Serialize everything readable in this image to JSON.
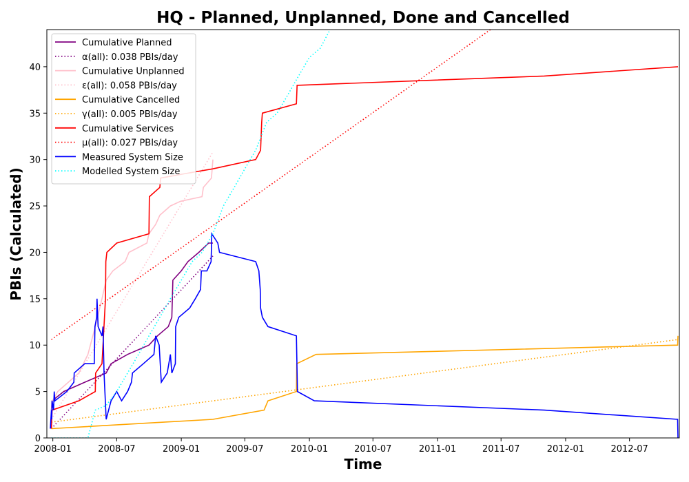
{
  "chart_data": {
    "type": "line",
    "title": "HQ - Planned, Unplanned, Done  and Cancelled",
    "xlabel": "Time",
    "ylabel": "PBIs (Calculated)",
    "xlim": [
      "2007-12-15",
      "2012-11-20"
    ],
    "ylim": [
      0,
      44
    ],
    "x_ticks": [
      "2008-01",
      "2008-07",
      "2009-01",
      "2009-07",
      "2010-01",
      "2010-07",
      "2011-01",
      "2011-07",
      "2012-01",
      "2012-07"
    ],
    "y_ticks": [
      0,
      5,
      10,
      15,
      20,
      25,
      30,
      35,
      40
    ],
    "grid": false,
    "legend": "upper-left",
    "series": [
      {
        "name": "Cumulative Planned",
        "color": "#800080",
        "style": "solid",
        "points": [
          [
            "2007-12-28",
            3
          ],
          [
            "2007-12-30",
            4
          ],
          [
            "2008-02-01",
            5
          ],
          [
            "2008-04-01",
            6
          ],
          [
            "2008-06-01",
            7
          ],
          [
            "2008-06-15",
            8
          ],
          [
            "2008-08-01",
            9
          ],
          [
            "2008-10-01",
            10
          ],
          [
            "2008-10-25",
            11
          ],
          [
            "2008-11-25",
            12
          ],
          [
            "2008-12-05",
            13
          ],
          [
            "2008-12-08",
            17
          ],
          [
            "2009-01-01",
            18
          ],
          [
            "2009-01-20",
            19
          ],
          [
            "2009-02-20",
            20
          ],
          [
            "2009-03-20",
            21
          ],
          [
            "2009-04-01",
            21
          ]
        ]
      },
      {
        "name": "α(all): 0.038 PBIs/day",
        "color": "#800080",
        "style": "dotted",
        "points": [
          [
            "2007-12-28",
            1.0
          ],
          [
            "2009-04-01",
            19.6
          ]
        ]
      },
      {
        "name": "Cumulative Unplanned",
        "color": "#ffc0cb",
        "style": "solid",
        "points": [
          [
            "2007-12-28",
            3
          ],
          [
            "2007-12-31",
            4
          ],
          [
            "2008-01-15",
            5
          ],
          [
            "2008-03-15",
            7
          ],
          [
            "2008-04-10",
            9
          ],
          [
            "2008-05-01",
            12
          ],
          [
            "2008-05-20",
            15
          ],
          [
            "2008-06-01",
            17
          ],
          [
            "2008-06-20",
            18
          ],
          [
            "2008-07-25",
            19
          ],
          [
            "2008-08-05",
            20
          ],
          [
            "2008-09-25",
            21
          ],
          [
            "2008-10-01",
            22
          ],
          [
            "2008-10-20",
            23
          ],
          [
            "2008-11-01",
            24
          ],
          [
            "2008-12-01",
            25
          ],
          [
            "2008-12-30",
            25.5
          ],
          [
            "2009-03-01",
            26
          ],
          [
            "2009-03-05",
            27
          ],
          [
            "2009-03-28",
            28
          ],
          [
            "2009-04-01",
            30
          ]
        ]
      },
      {
        "name": "ε(all): 0.058 PBIs/day",
        "color": "#ffc0cb",
        "style": "dotted",
        "points": [
          [
            "2007-12-28",
            2
          ],
          [
            "2009-04-01",
            30.8
          ]
        ]
      },
      {
        "name": "Cumulative Cancelled",
        "color": "#ffa500",
        "style": "solid",
        "points": [
          [
            "2007-12-28",
            1
          ],
          [
            "2009-04-01",
            2
          ],
          [
            "2009-08-25",
            3
          ],
          [
            "2009-09-05",
            4
          ],
          [
            "2009-11-25",
            5
          ],
          [
            "2009-11-26",
            8
          ],
          [
            "2010-01-20",
            9
          ],
          [
            "2012-11-15",
            10
          ],
          [
            "2012-11-16",
            11
          ]
        ]
      },
      {
        "name": "γ(all): 0.005 PBIs/day",
        "color": "#ffa500",
        "style": "dotted",
        "points": [
          [
            "2007-12-28",
            1.7
          ],
          [
            "2012-11-16",
            10.6
          ]
        ]
      },
      {
        "name": "Cumulative Services",
        "color": "#ff0000",
        "style": "solid",
        "points": [
          [
            "2007-12-28",
            1
          ],
          [
            "2007-12-30",
            3
          ],
          [
            "2008-03-15",
            4
          ],
          [
            "2008-05-01",
            5
          ],
          [
            "2008-05-02",
            7
          ],
          [
            "2008-05-20",
            8
          ],
          [
            "2008-05-30",
            15
          ],
          [
            "2008-05-31",
            19
          ],
          [
            "2008-06-03",
            20
          ],
          [
            "2008-07-01",
            21
          ],
          [
            "2008-10-01",
            22
          ],
          [
            "2008-10-02",
            26
          ],
          [
            "2008-11-01",
            27
          ],
          [
            "2008-11-03",
            28
          ],
          [
            "2009-01-15",
            28.5
          ],
          [
            "2009-04-01",
            29
          ],
          [
            "2009-08-01",
            30
          ],
          [
            "2009-08-15",
            31
          ],
          [
            "2009-08-18",
            34
          ],
          [
            "2009-08-20",
            35
          ],
          [
            "2009-11-25",
            36
          ],
          [
            "2009-11-27",
            38
          ],
          [
            "2011-11-01",
            39
          ],
          [
            "2012-11-16",
            40
          ]
        ]
      },
      {
        "name": "μ(all): 0.027 PBIs/day",
        "color": "#ff0000",
        "style": "dotted",
        "points": [
          [
            "2007-12-28",
            10.6
          ],
          [
            "2011-06-01",
            44
          ]
        ]
      },
      {
        "name": "Measured System Size",
        "color": "#0000ff",
        "style": "solid",
        "points": [
          [
            "2007-12-25",
            1
          ],
          [
            "2007-12-28",
            3
          ],
          [
            "2007-12-29",
            2
          ],
          [
            "2007-12-30",
            4
          ],
          [
            "2008-01-03",
            3
          ],
          [
            "2008-01-05",
            5
          ],
          [
            "2008-01-07",
            4
          ],
          [
            "2008-02-10",
            5
          ],
          [
            "2008-03-01",
            6
          ],
          [
            "2008-03-02",
            7
          ],
          [
            "2008-04-01",
            8
          ],
          [
            "2008-04-28",
            8
          ],
          [
            "2008-04-30",
            12
          ],
          [
            "2008-05-05",
            13
          ],
          [
            "2008-05-06",
            15
          ],
          [
            "2008-05-09",
            12
          ],
          [
            "2008-05-20",
            11
          ],
          [
            "2008-05-23",
            12
          ],
          [
            "2008-05-26",
            7
          ],
          [
            "2008-06-01",
            2
          ],
          [
            "2008-06-15",
            4
          ],
          [
            "2008-07-01",
            5
          ],
          [
            "2008-07-15",
            4
          ],
          [
            "2008-08-01",
            5
          ],
          [
            "2008-08-12",
            6
          ],
          [
            "2008-08-15",
            7
          ],
          [
            "2008-09-15",
            8
          ],
          [
            "2008-10-15",
            9
          ],
          [
            "2008-10-20",
            11
          ],
          [
            "2008-10-30",
            10
          ],
          [
            "2008-11-05",
            6
          ],
          [
            "2008-11-22",
            7
          ],
          [
            "2008-12-01",
            9
          ],
          [
            "2008-12-05",
            7
          ],
          [
            "2008-12-15",
            8
          ],
          [
            "2008-12-16",
            12
          ],
          [
            "2008-12-25",
            13
          ],
          [
            "2009-01-25",
            14
          ],
          [
            "2009-02-10",
            15
          ],
          [
            "2009-02-25",
            16
          ],
          [
            "2009-02-27",
            18
          ],
          [
            "2009-03-15",
            18
          ],
          [
            "2009-03-27",
            19
          ],
          [
            "2009-03-29",
            22
          ],
          [
            "2009-04-15",
            21
          ],
          [
            "2009-04-20",
            20
          ],
          [
            "2009-08-01",
            19
          ],
          [
            "2009-08-10",
            18
          ],
          [
            "2009-08-14",
            16
          ],
          [
            "2009-08-15",
            14
          ],
          [
            "2009-08-20",
            13
          ],
          [
            "2009-09-05",
            12
          ],
          [
            "2009-11-25",
            11
          ],
          [
            "2009-11-26",
            9
          ],
          [
            "2009-11-28",
            5
          ],
          [
            "2010-01-15",
            4
          ],
          [
            "2011-11-01",
            3
          ],
          [
            "2012-11-15",
            2
          ],
          [
            "2012-11-16",
            0
          ]
        ]
      },
      {
        "name": "Modelled System Size",
        "color": "#00ffff",
        "style": "dotted",
        "points": [
          [
            "2007-12-28",
            0
          ],
          [
            "2008-04-10",
            0
          ],
          [
            "2008-05-01",
            3
          ],
          [
            "2008-06-01",
            3.5
          ],
          [
            "2008-07-01",
            5
          ],
          [
            "2008-08-01",
            7
          ],
          [
            "2008-09-01",
            9
          ],
          [
            "2008-10-01",
            11
          ],
          [
            "2008-11-01",
            13
          ],
          [
            "2008-12-01",
            15
          ],
          [
            "2009-01-01",
            17
          ],
          [
            "2009-02-01",
            19
          ],
          [
            "2009-03-01",
            20
          ],
          [
            "2009-04-01",
            22
          ],
          [
            "2009-05-01",
            25
          ],
          [
            "2009-06-01",
            27
          ],
          [
            "2009-07-01",
            29
          ],
          [
            "2009-08-01",
            31
          ],
          [
            "2009-09-01",
            34
          ],
          [
            "2009-10-01",
            35
          ],
          [
            "2009-11-01",
            37
          ],
          [
            "2009-12-01",
            39
          ],
          [
            "2010-01-01",
            41
          ],
          [
            "2010-02-01",
            42
          ],
          [
            "2010-03-01",
            44
          ]
        ]
      }
    ]
  }
}
